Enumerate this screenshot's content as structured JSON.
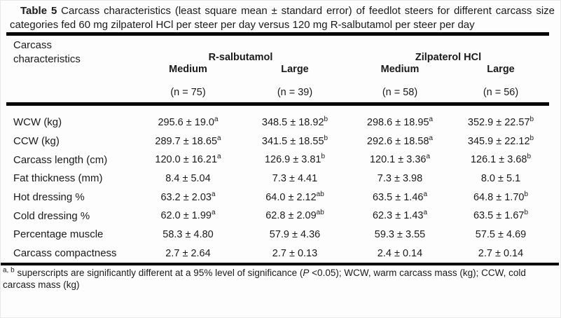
{
  "title": {
    "bold": "Table 5",
    "rest": " Carcass characteristics (least square mean ± standard error) of feedlot steers for different carcass size categories fed 60 mg zilpaterol HCl per steer per day versus 120 mg R-salbutamol per steer per day"
  },
  "table": {
    "row_header": "Carcass characteristics",
    "groups": [
      {
        "label": "R-salbutamol"
      },
      {
        "label": "Zilpaterol HCl"
      }
    ],
    "subheaders": [
      "Medium",
      "Large",
      "Medium",
      "Large"
    ],
    "counts": [
      "(n = 75)",
      "(n = 39)",
      "(n = 58)",
      "(n = 56)"
    ],
    "rows": [
      {
        "label": "WCW (kg)",
        "c1": "295.6 ± 19.0",
        "s1": "a",
        "c2": "348.5 ± 18.92",
        "s2": "b",
        "c3": "298.6 ± 18.95",
        "s3": "a",
        "c4": "352.9 ± 22.57",
        "s4": "b"
      },
      {
        "label": "CCW (kg)",
        "c1": "289.7 ± 18.65",
        "s1": "a",
        "c2": "341.5 ± 18.55",
        "s2": "b",
        "c3": "292.6 ± 18.58",
        "s3": "a",
        "c4": "345.9 ± 22.12",
        "s4": "b"
      },
      {
        "label": "Carcass length (cm)",
        "c1": "120.0 ± 16.21",
        "s1": "a",
        "c2": "126.9 ± 3.81",
        "s2": "b",
        "c3": "120.1 ± 3.36",
        "s3": "a",
        "c4": "126.1 ± 3.68",
        "s4": "b"
      },
      {
        "label": "Fat thickness (mm)",
        "c1": "8.4 ± 5.04",
        "s1": "",
        "c2": "7.3 ± 4.41",
        "s2": "",
        "c3": "7.3 ± 3.98",
        "s3": "",
        "c4": "8.0 ± 5.1",
        "s4": ""
      },
      {
        "label": "Hot dressing %",
        "c1": "63.2 ± 2.03",
        "s1": "a",
        "c2": "64.0 ± 2.12",
        "s2": "ab",
        "c3": "63.5 ± 1.46",
        "s3": "a",
        "c4": "64.8 ± 1.70",
        "s4": "b"
      },
      {
        "label": "Cold dressing %",
        "c1": "62.0 ± 1.99",
        "s1": "a",
        "c2": "62.8 ± 2.09",
        "s2": "ab",
        "c3": "62.3 ± 1.43",
        "s3": "a",
        "c4": "63.5 ± 1.67",
        "s4": "b"
      },
      {
        "label": "Percentage muscle",
        "c1": "58.3 ± 4.80",
        "s1": "",
        "c2": "57.9 ± 4.36",
        "s2": "",
        "c3": "59.3 ± 3.55",
        "s3": "",
        "c4": "57.5 ± 4.69",
        "s4": ""
      },
      {
        "label": "Carcass compactness",
        "c1": "2.7 ± 2.64",
        "s1": "",
        "c2": "2.7 ± 0.13",
        "s2": "",
        "c3": "2.4 ± 0.14",
        "s3": "",
        "c4": "2.7 ± 0.14",
        "s4": ""
      }
    ]
  },
  "footnote": {
    "sup": "a, b",
    "part1": " superscripts are significantly different at a 95% level of significance (",
    "p": "P",
    "part2": " <0.05); WCW, warm carcass mass (kg); CCW, cold carcass mass (kg)"
  }
}
